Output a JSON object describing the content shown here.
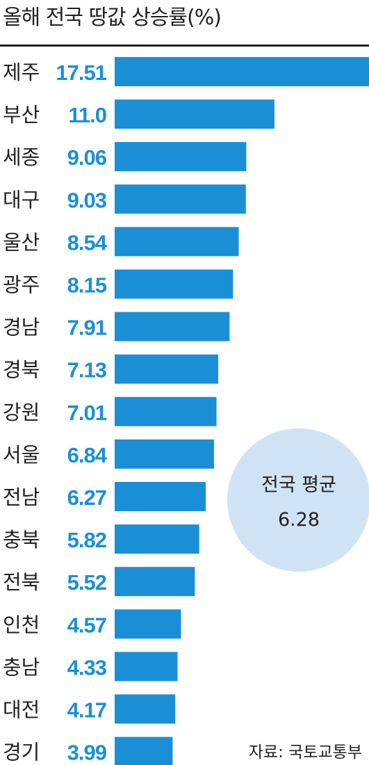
{
  "title": "올해 전국 땅값 상승률(%)",
  "source": "자료: 국토교통부",
  "average": {
    "label": "전국 평균",
    "value": "6.28"
  },
  "colors": {
    "bar": "#1a8fd6",
    "value_text": "#1a8fd6",
    "average_circle": "#cfe3f5",
    "text": "#231f20"
  },
  "chart_data": {
    "type": "bar",
    "orientation": "horizontal",
    "title": "올해 전국 땅값 상승률(%)",
    "categories": [
      "제주",
      "부산",
      "세종",
      "대구",
      "울산",
      "광주",
      "경남",
      "경북",
      "강원",
      "서울",
      "전남",
      "충북",
      "전북",
      "인천",
      "충남",
      "대전",
      "경기"
    ],
    "values": [
      17.51,
      11.0,
      9.06,
      9.03,
      8.54,
      8.15,
      7.91,
      7.13,
      7.01,
      6.84,
      6.27,
      5.82,
      5.52,
      4.57,
      4.33,
      4.17,
      3.99
    ],
    "value_labels": [
      "17.51",
      "11.0",
      "9.06",
      "9.03",
      "8.54",
      "8.15",
      "7.91",
      "7.13",
      "7.01",
      "6.84",
      "6.27",
      "5.82",
      "5.52",
      "4.57",
      "4.33",
      "4.17",
      "3.99"
    ],
    "grid": false
  }
}
